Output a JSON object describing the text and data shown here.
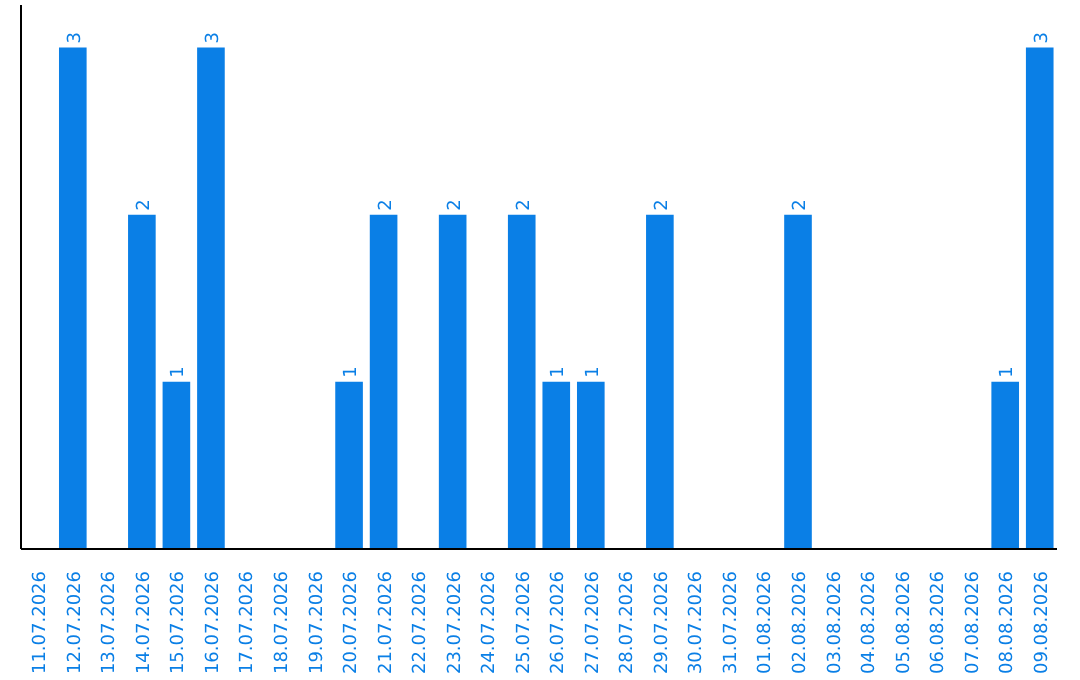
{
  "chart_data": {
    "type": "bar",
    "categories": [
      "11.07.2026",
      "12.07.2026",
      "13.07.2026",
      "14.07.2026",
      "15.07.2026",
      "16.07.2026",
      "17.07.2026",
      "18.07.2026",
      "19.07.2026",
      "20.07.2026",
      "21.07.2026",
      "22.07.2026",
      "23.07.2026",
      "24.07.2026",
      "25.07.2026",
      "26.07.2026",
      "27.07.2026",
      "28.07.2026",
      "29.07.2026",
      "30.07.2026",
      "31.07.2026",
      "01.08.2026",
      "02.08.2026",
      "03.08.2026",
      "04.08.2026",
      "05.08.2026",
      "06.08.2026",
      "07.08.2026",
      "08.08.2026",
      "09.08.2026"
    ],
    "values": [
      0,
      3,
      0,
      2,
      1,
      3,
      0,
      0,
      0,
      1,
      2,
      0,
      2,
      0,
      2,
      1,
      1,
      0,
      2,
      0,
      0,
      0,
      2,
      0,
      0,
      0,
      0,
      0,
      1,
      3
    ],
    "value_labels": [
      null,
      "3",
      null,
      "2",
      "1",
      "3",
      null,
      null,
      null,
      "1",
      "2",
      null,
      "2",
      null,
      "2",
      "1",
      "1",
      null,
      "2",
      null,
      null,
      null,
      "2",
      null,
      null,
      null,
      null,
      null,
      "1",
      "3"
    ],
    "color": "#0a7fe6",
    "grid": false,
    "tick_labels": "x"
  }
}
